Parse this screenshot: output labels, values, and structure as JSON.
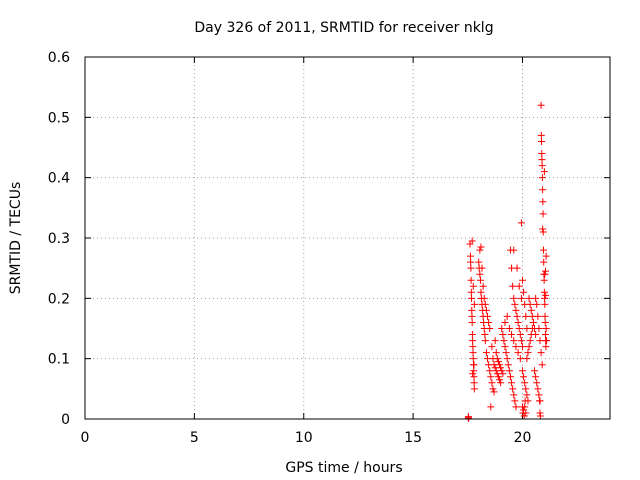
{
  "chart_data": {
    "type": "scatter",
    "title": "Day 326 of 2011, SRMTID for receiver nklg",
    "xlabel": "GPS time / hours",
    "ylabel": "SRMTID / TECUs",
    "xlim": [
      0,
      24
    ],
    "ylim": [
      0,
      0.6
    ],
    "xticks": [
      0,
      5,
      10,
      15,
      20
    ],
    "yticks": [
      0,
      0.1,
      0.2,
      0.3,
      0.4,
      0.5,
      0.6
    ],
    "xtick_labels": [
      "0",
      "5",
      "10",
      "15",
      "20"
    ],
    "ytick_labels": [
      "0",
      "0.1",
      "0.2",
      "0.3",
      "0.4",
      "0.5",
      "0.6"
    ],
    "grid": true,
    "marker": "plus",
    "marker_color": "#ff0000",
    "series": [
      {
        "name": "SRMTID",
        "points": [
          [
            17.52,
            0.002
          ],
          [
            17.53,
            0.004
          ],
          [
            17.54,
            0.001
          ],
          [
            17.6,
            0.29
          ],
          [
            17.62,
            0.27
          ],
          [
            17.63,
            0.26
          ],
          [
            17.64,
            0.25
          ],
          [
            17.65,
            0.23
          ],
          [
            17.66,
            0.21
          ],
          [
            17.67,
            0.2
          ],
          [
            17.68,
            0.18
          ],
          [
            17.69,
            0.17
          ],
          [
            17.7,
            0.16
          ],
          [
            17.71,
            0.14
          ],
          [
            17.72,
            0.13
          ],
          [
            17.73,
            0.12
          ],
          [
            17.74,
            0.11
          ],
          [
            17.75,
            0.1
          ],
          [
            17.76,
            0.09
          ],
          [
            17.77,
            0.08
          ],
          [
            17.78,
            0.07
          ],
          [
            17.79,
            0.06
          ],
          [
            17.8,
            0.05
          ],
          [
            17.7,
            0.295
          ],
          [
            17.75,
            0.22
          ],
          [
            17.8,
            0.19
          ],
          [
            17.72,
            0.075
          ],
          [
            17.78,
            0.09
          ],
          [
            18.0,
            0.26
          ],
          [
            18.02,
            0.25
          ],
          [
            18.05,
            0.24
          ],
          [
            18.08,
            0.23
          ],
          [
            18.1,
            0.21
          ],
          [
            18.12,
            0.2
          ],
          [
            18.15,
            0.19
          ],
          [
            18.18,
            0.18
          ],
          [
            18.2,
            0.17
          ],
          [
            18.22,
            0.16
          ],
          [
            18.25,
            0.15
          ],
          [
            18.28,
            0.14
          ],
          [
            18.3,
            0.13
          ],
          [
            18.05,
            0.28
          ],
          [
            18.1,
            0.285
          ],
          [
            18.15,
            0.25
          ],
          [
            18.2,
            0.22
          ],
          [
            18.25,
            0.2
          ],
          [
            18.3,
            0.19
          ],
          [
            18.35,
            0.18
          ],
          [
            18.4,
            0.17
          ],
          [
            18.45,
            0.16
          ],
          [
            18.5,
            0.15
          ],
          [
            18.35,
            0.11
          ],
          [
            18.4,
            0.1
          ],
          [
            18.45,
            0.09
          ],
          [
            18.5,
            0.08
          ],
          [
            18.55,
            0.07
          ],
          [
            18.6,
            0.06
          ],
          [
            18.65,
            0.05
          ],
          [
            18.7,
            0.045
          ],
          [
            18.55,
            0.02
          ],
          [
            18.6,
            0.12
          ],
          [
            18.65,
            0.1
          ],
          [
            18.7,
            0.09
          ],
          [
            18.75,
            0.085
          ],
          [
            18.8,
            0.08
          ],
          [
            18.85,
            0.075
          ],
          [
            18.9,
            0.07
          ],
          [
            18.95,
            0.065
          ],
          [
            19.0,
            0.06
          ],
          [
            18.75,
            0.13
          ],
          [
            18.8,
            0.11
          ],
          [
            18.85,
            0.1
          ],
          [
            18.9,
            0.095
          ],
          [
            18.95,
            0.09
          ],
          [
            19.0,
            0.085
          ],
          [
            19.05,
            0.08
          ],
          [
            19.1,
            0.075
          ],
          [
            19.05,
            0.15
          ],
          [
            19.1,
            0.14
          ],
          [
            19.15,
            0.13
          ],
          [
            19.2,
            0.12
          ],
          [
            19.25,
            0.11
          ],
          [
            19.3,
            0.1
          ],
          [
            19.35,
            0.09
          ],
          [
            19.4,
            0.08
          ],
          [
            19.45,
            0.07
          ],
          [
            19.5,
            0.06
          ],
          [
            19.55,
            0.05
          ],
          [
            19.6,
            0.04
          ],
          [
            19.65,
            0.03
          ],
          [
            19.7,
            0.02
          ],
          [
            19.2,
            0.16
          ],
          [
            19.3,
            0.17
          ],
          [
            19.4,
            0.15
          ],
          [
            19.5,
            0.14
          ],
          [
            19.6,
            0.13
          ],
          [
            19.7,
            0.12
          ],
          [
            19.8,
            0.11
          ],
          [
            19.9,
            0.1
          ],
          [
            19.45,
            0.28
          ],
          [
            19.5,
            0.25
          ],
          [
            19.55,
            0.22
          ],
          [
            19.6,
            0.2
          ],
          [
            19.65,
            0.19
          ],
          [
            19.7,
            0.18
          ],
          [
            19.75,
            0.17
          ],
          [
            19.8,
            0.16
          ],
          [
            19.85,
            0.15
          ],
          [
            19.9,
            0.14
          ],
          [
            19.95,
            0.13
          ],
          [
            20.0,
            0.12
          ],
          [
            19.6,
            0.28
          ],
          [
            19.75,
            0.25
          ],
          [
            19.85,
            0.22
          ],
          [
            19.95,
            0.2
          ],
          [
            19.95,
            0.325
          ],
          [
            20.0,
            0.23
          ],
          [
            20.05,
            0.21
          ],
          [
            20.1,
            0.19
          ],
          [
            20.15,
            0.17
          ],
          [
            20.2,
            0.15
          ],
          [
            20.0,
            0.02
          ],
          [
            20.02,
            0.01
          ],
          [
            20.05,
            0.015
          ],
          [
            20.08,
            0.005
          ],
          [
            20.1,
            0.02
          ],
          [
            20.12,
            0.03
          ],
          [
            20.15,
            0.01
          ],
          [
            20.0,
            0.08
          ],
          [
            20.05,
            0.07
          ],
          [
            20.1,
            0.06
          ],
          [
            20.15,
            0.05
          ],
          [
            20.2,
            0.04
          ],
          [
            20.25,
            0.03
          ],
          [
            20.2,
            0.1
          ],
          [
            20.25,
            0.11
          ],
          [
            20.3,
            0.12
          ],
          [
            20.35,
            0.13
          ],
          [
            20.4,
            0.14
          ],
          [
            20.45,
            0.15
          ],
          [
            20.5,
            0.16
          ],
          [
            20.3,
            0.2
          ],
          [
            20.35,
            0.19
          ],
          [
            20.4,
            0.18
          ],
          [
            20.45,
            0.17
          ],
          [
            20.5,
            0.16
          ],
          [
            20.55,
            0.15
          ],
          [
            20.6,
            0.14
          ],
          [
            20.55,
            0.08
          ],
          [
            20.6,
            0.07
          ],
          [
            20.65,
            0.06
          ],
          [
            20.7,
            0.05
          ],
          [
            20.75,
            0.04
          ],
          [
            20.8,
            0.03
          ],
          [
            20.6,
            0.2
          ],
          [
            20.65,
            0.19
          ],
          [
            20.7,
            0.17
          ],
          [
            20.75,
            0.15
          ],
          [
            20.8,
            0.13
          ],
          [
            20.85,
            0.11
          ],
          [
            20.9,
            0.09
          ],
          [
            20.78,
            0.03
          ],
          [
            20.8,
            0.01
          ],
          [
            20.82,
            0.005
          ],
          [
            20.85,
            0.52
          ],
          [
            20.86,
            0.47
          ],
          [
            20.87,
            0.46
          ],
          [
            20.88,
            0.44
          ],
          [
            20.89,
            0.43
          ],
          [
            20.9,
            0.42
          ],
          [
            20.91,
            0.4
          ],
          [
            20.92,
            0.38
          ],
          [
            20.93,
            0.36
          ],
          [
            20.94,
            0.34
          ],
          [
            20.95,
            0.31
          ],
          [
            20.92,
            0.315
          ],
          [
            20.96,
            0.28
          ],
          [
            20.97,
            0.26
          ],
          [
            20.98,
            0.24
          ],
          [
            20.99,
            0.23
          ],
          [
            21.0,
            0.21
          ],
          [
            21.01,
            0.2
          ],
          [
            21.02,
            0.19
          ],
          [
            21.03,
            0.17
          ],
          [
            21.04,
            0.16
          ],
          [
            21.05,
            0.14
          ],
          [
            21.06,
            0.13
          ],
          [
            21.07,
            0.12
          ],
          [
            21.08,
            0.27
          ],
          [
            21.05,
            0.245
          ],
          [
            21.02,
            0.24
          ],
          [
            21.06,
            0.205
          ],
          [
            21.08,
            0.15
          ],
          [
            21.1,
            0.13
          ],
          [
            21.0,
            0.41
          ]
        ]
      }
    ]
  }
}
